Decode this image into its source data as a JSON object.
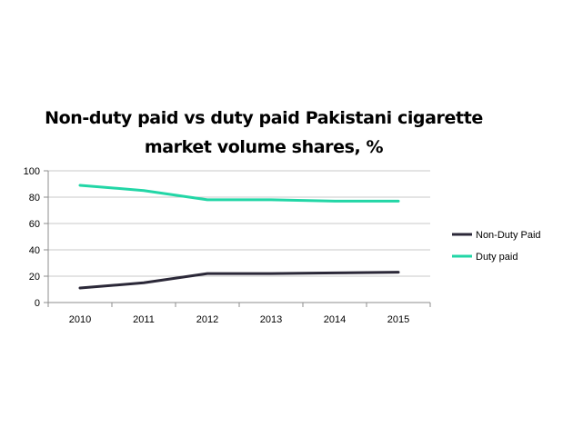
{
  "chart_data": {
    "type": "line",
    "title_lines": [
      "Non-duty paid vs duty paid Pakistani cigarette",
      "market volume shares, %"
    ],
    "xlabel": "",
    "ylabel": "",
    "categories": [
      "2010",
      "2011",
      "2012",
      "2013",
      "2014",
      "2015"
    ],
    "y_ticks": [
      "0",
      "20",
      "40",
      "60",
      "80",
      "100"
    ],
    "ylim": [
      0,
      100
    ],
    "grid": "horizontal",
    "legend_position": "right",
    "series": [
      {
        "name": "Non-Duty Paid",
        "color": "#2b2838",
        "values": [
          11,
          15,
          22,
          22,
          22.5,
          23
        ]
      },
      {
        "name": "Duty paid",
        "color": "#22d6a6",
        "values": [
          89,
          85,
          78,
          78,
          77,
          77
        ]
      }
    ]
  }
}
